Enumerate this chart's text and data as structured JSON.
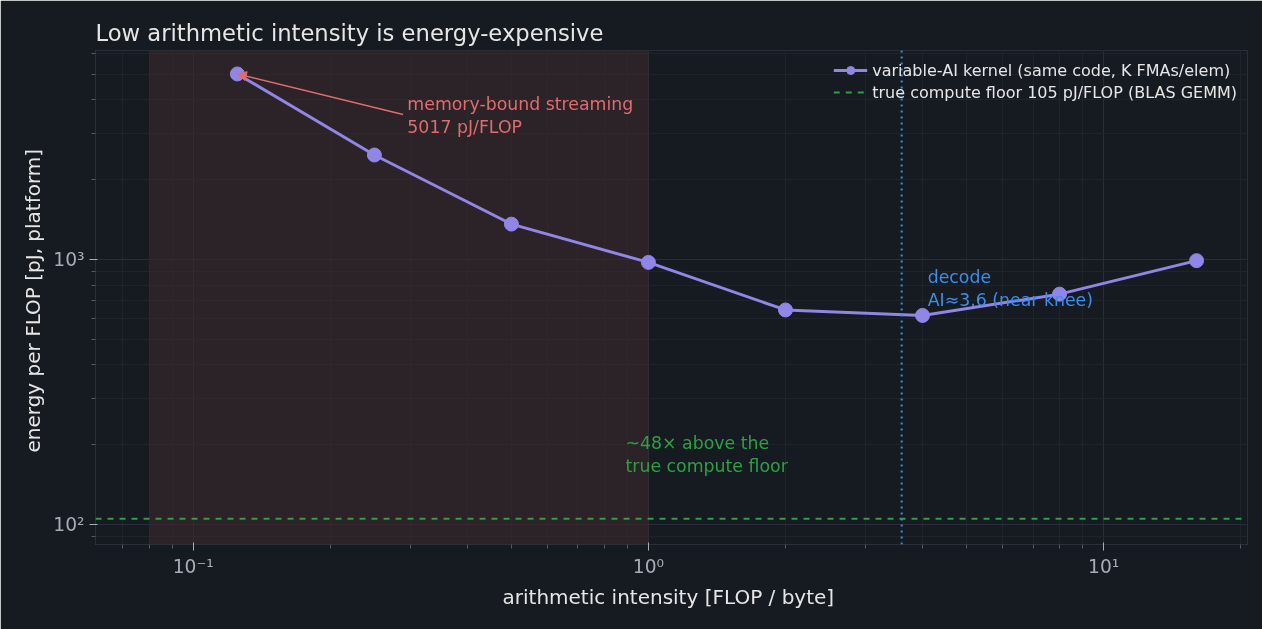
{
  "chart_data": {
    "type": "line",
    "title": "Low arithmetic intensity is energy-expensive",
    "xlabel": "arithmetic intensity  [FLOP / byte]",
    "ylabel": "energy per FLOP  [pJ, platform]",
    "x": [
      0.125,
      0.25,
      0.5,
      1,
      2,
      4,
      8,
      16
    ],
    "series": [
      {
        "name": "variable-AI kernel (same code, K FMAs/elem)",
        "color": "#8f86e6",
        "values": [
          5017,
          2480,
          1360,
          975,
          645,
          615,
          740,
          990
        ]
      }
    ],
    "log": "xy",
    "marker": "circle",
    "line_style": "solid",
    "grid": true,
    "legend": "top right",
    "xlim": [
      0.061,
      20.7
    ],
    "ylim": [
      84,
      6150
    ],
    "xticks": [
      {
        "value": 0.1,
        "label": "10⁻¹"
      },
      {
        "value": 1,
        "label": "10⁰"
      },
      {
        "value": 10,
        "label": "10¹"
      }
    ],
    "yticks": [
      {
        "value": 100,
        "label": "10²"
      },
      {
        "value": 1000,
        "label": "10³"
      }
    ],
    "ref_lines": [
      {
        "axis": "y",
        "value": 105,
        "label": "true compute floor 105 pJ/FLOP (BLAS GEMM)",
        "color": "#2ea043",
        "line_style": "dashed"
      },
      {
        "axis": "x",
        "value": 3.6,
        "color": "#3b8eea",
        "line_style": "dotted"
      }
    ],
    "bands": [
      {
        "axis": "x",
        "from": 0.08,
        "to": 1.0,
        "color": "#3a2a2c"
      }
    ],
    "annotations": [
      {
        "text": "memory-bound streaming\n5017 pJ/FLOP",
        "x": 0.125,
        "y": 5017
      },
      "~48× above the\ntrue compute floor",
      {
        "text": "decode\nAI≈3.6 (near knee)",
        "x": 3.6,
        "y": 940
      }
    ]
  }
}
